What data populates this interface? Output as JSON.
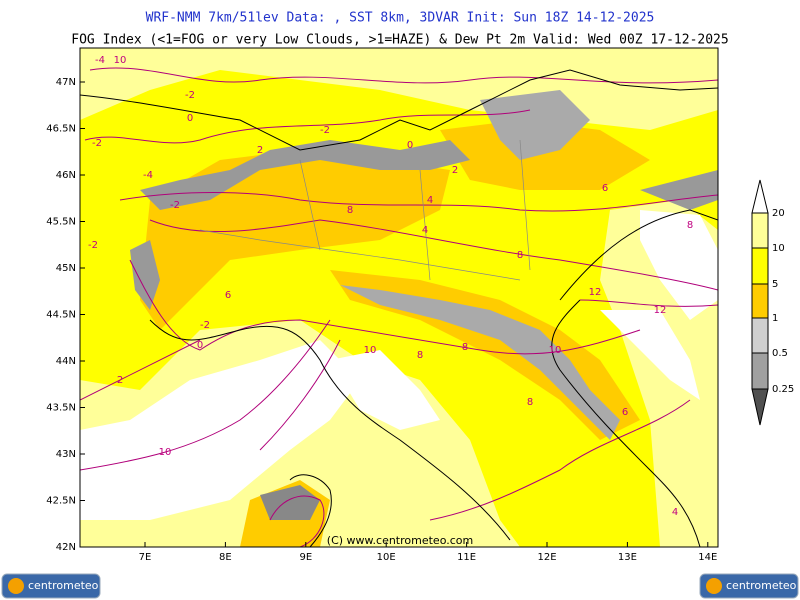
{
  "header": {
    "line1": "WRF-NMM 7km/51lev   Data: , SST 8km, 3DVAR   Init: Sun 18Z 14-12-2025",
    "line2": "FOG Index (<1=FOG or very Low Clouds, >1=HAZE) & Dew Pt 2m   Valid: Wed 00Z 17-12-2025"
  },
  "map": {
    "lat_labels": [
      "47N",
      "46.5N",
      "46N",
      "45.5N",
      "45N",
      "44.5N",
      "44N",
      "43.5N",
      "43N",
      "42.5N",
      "42N"
    ],
    "lon_labels": [
      "7E",
      "8E",
      "9E",
      "10E",
      "11E",
      "12E",
      "13E",
      "14E"
    ],
    "contour_labels": [
      "-4",
      "-2",
      "0",
      "-2",
      "-2",
      "-4",
      "-2",
      "0",
      "2",
      "-2",
      "0",
      "2",
      "4",
      "6",
      "8",
      "8",
      "8",
      "10",
      "12",
      "12",
      "10",
      "8",
      "8",
      "6",
      "4",
      "2",
      "-2",
      "6",
      "10",
      "8",
      "10",
      "4"
    ],
    "credit": "(C) www.centrometeo.com"
  },
  "legend": {
    "labels": [
      "20",
      "10",
      "5",
      "1",
      "0.5",
      "0.25"
    ]
  },
  "footer": {
    "logo_left": "centrometeo",
    "logo_right": "centrometeo"
  }
}
